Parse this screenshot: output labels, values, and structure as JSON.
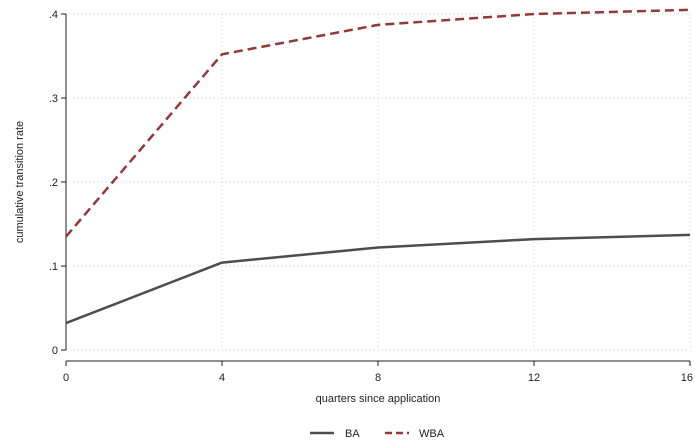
{
  "chart_data": {
    "type": "line",
    "title": "",
    "xlabel": "quarters since application",
    "ylabel": "cumulative transition rate",
    "x": [
      0,
      4,
      8,
      12,
      16
    ],
    "xlim": [
      0,
      16
    ],
    "ylim": [
      0,
      0.4
    ],
    "x_ticks": [
      0,
      4,
      8,
      12,
      16
    ],
    "x_tick_labels": [
      "0",
      "4",
      "8",
      "12",
      "16"
    ],
    "y_ticks": [
      0,
      0.1,
      0.2,
      0.3,
      0.4
    ],
    "y_tick_labels": [
      "0",
      ".1",
      ".2",
      ".3",
      ".4"
    ],
    "grid": true,
    "legend_position": "bottom",
    "series": [
      {
        "name": "BA",
        "values": [
          0.032,
          0.104,
          0.122,
          0.132,
          0.137
        ],
        "color": "#4d4d4d",
        "style": "solid"
      },
      {
        "name": "WBA",
        "values": [
          0.135,
          0.352,
          0.387,
          0.4,
          0.405
        ],
        "color": "#953838",
        "style": "dashed"
      }
    ]
  }
}
